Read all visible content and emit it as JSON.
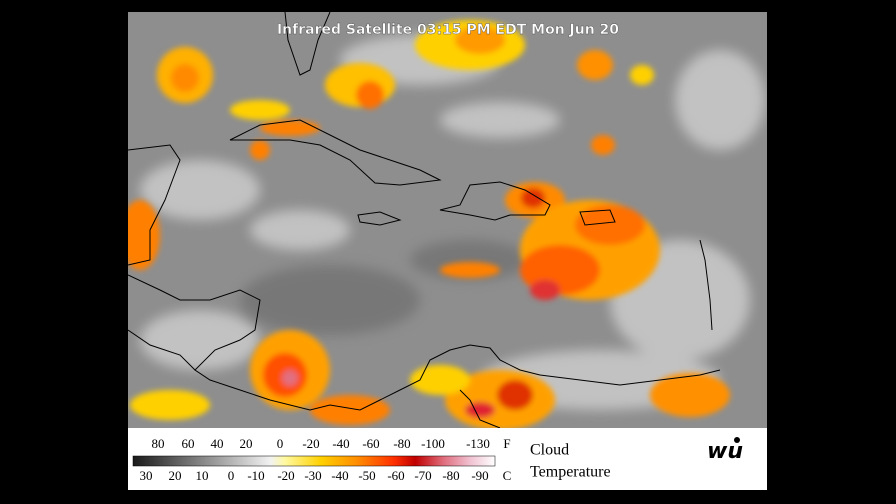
{
  "header": {
    "title": "Infrared Satellite 03:15 PM EDT Mon Jun 20"
  },
  "legend": {
    "fahrenheit": [
      "80",
      "60",
      "40",
      "20",
      "0",
      "-20",
      "-40",
      "-60",
      "-80",
      "-100",
      "-130"
    ],
    "fahrenheit_unit": "F",
    "celsius": [
      "30",
      "20",
      "10",
      "0",
      "-10",
      "-20",
      "-30",
      "-40",
      "-50",
      "-60",
      "-70",
      "-80",
      "-90"
    ],
    "celsius_unit": "C",
    "caption_line1": "Cloud",
    "caption_line2": "Temperature"
  },
  "logo": {
    "text": "wu"
  }
}
